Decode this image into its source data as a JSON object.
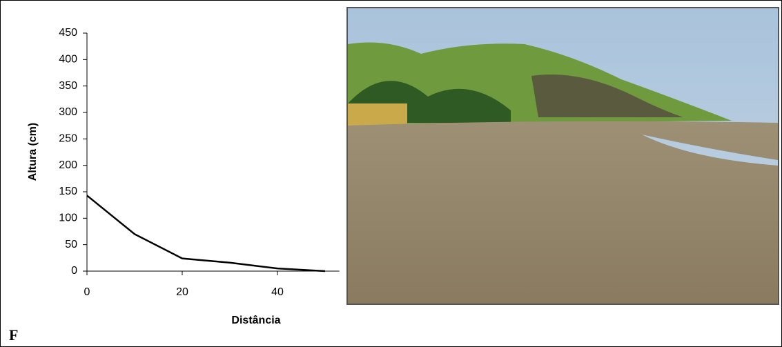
{
  "panel_label": "F",
  "chart_data": {
    "type": "line",
    "x_label": "Distância",
    "y_label": "Altura (cm)",
    "x": [
      0,
      10,
      20,
      30,
      40,
      50
    ],
    "series": [
      {
        "color": "#000000",
        "values": [
          143,
          70,
          24,
          16,
          5,
          0
        ]
      }
    ],
    "xlim": [
      0,
      53
    ],
    "xticks": [
      0,
      20,
      40
    ],
    "ylim": [
      0,
      450
    ],
    "yticks": [
      0,
      50,
      100,
      150,
      200,
      250,
      300,
      350,
      400,
      450
    ]
  }
}
